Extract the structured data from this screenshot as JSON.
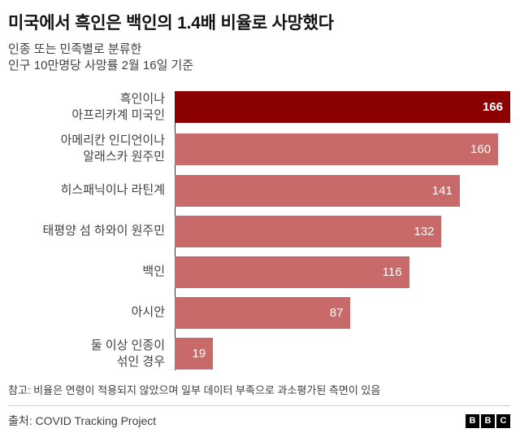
{
  "header": {
    "title": "미국에서 흑인은 백인의  1.4배 비율로 사망했다",
    "subtitle_line1": "인종 또는 민족별로 분류한",
    "subtitle_line2": "인구 10만명당 사망률 2월 16일 기준"
  },
  "chart_data": {
    "type": "bar",
    "orientation": "horizontal",
    "categories": [
      "흑인이나 아프리카계 미국인",
      "아메리칸 인디언이나 알래스카 원주민",
      "히스패닉이나 라틴계",
      "태평양 섬 하와이 원주민",
      "백인",
      "아시안",
      "둘 이상 인종이 섞인 경우"
    ],
    "label_lines": [
      [
        "흑인이나",
        "아프리카계 미국인"
      ],
      [
        "아메리칸 인디언이나",
        "알래스카 원주민"
      ],
      [
        "히스패닉이나 라틴계"
      ],
      [
        "태평양 섬 하와이 원주민"
      ],
      [
        "백인"
      ],
      [
        "아시안"
      ],
      [
        "둘 이상 인종이",
        "섞인 경우"
      ]
    ],
    "values": [
      166,
      160,
      141,
      132,
      116,
      87,
      19
    ],
    "xlim": [
      0,
      166
    ],
    "highlight_index": 0,
    "bar_color": "#c96a6a",
    "highlight_color": "#8b0000",
    "value_label_color": "#ffffff",
    "grid": false,
    "legend": false
  },
  "footer": {
    "note": "참고: 비율은 연령이 적용되지 않았으며 일부 데이터 부족으로 과소평가된 측면이 있음",
    "source": "출처: COVID Tracking Project",
    "logo_letters": [
      "B",
      "B",
      "C"
    ]
  }
}
